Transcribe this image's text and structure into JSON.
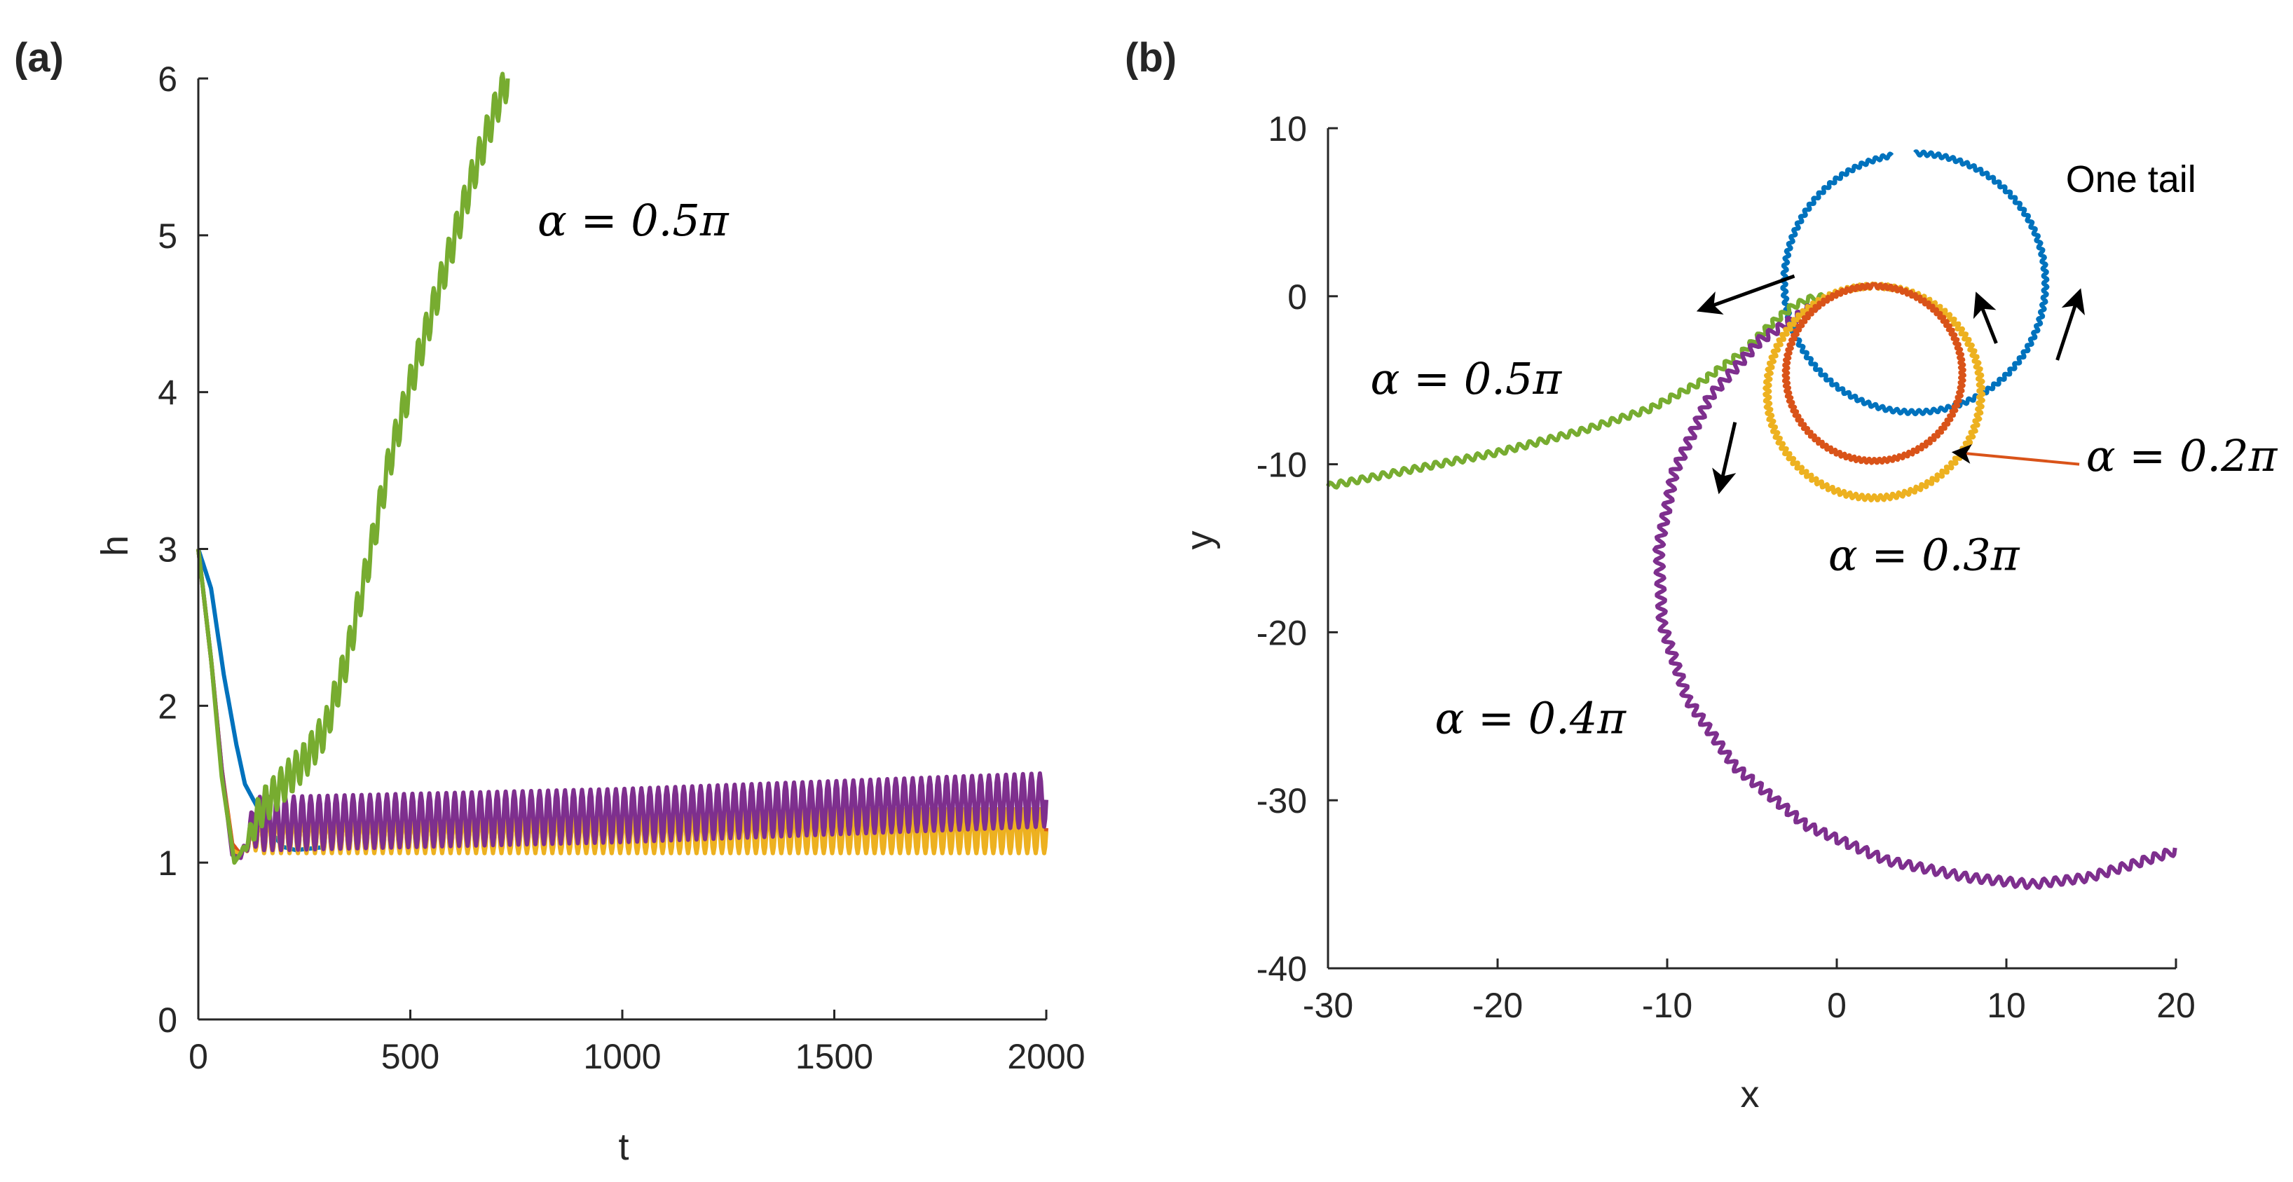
{
  "colors": {
    "alpha_0_2pi": "#D95319",
    "alpha_0_3pi": "#EDB120",
    "alpha_0_4pi": "#7E2F8E",
    "alpha_0_5pi": "#77AC30",
    "one_tail": "#0072BD",
    "axis": "#262626"
  },
  "chart_data": [
    {
      "panel_label": "(a)",
      "panel_letter": "a",
      "type": "line",
      "xlabel": "t",
      "ylabel": "h",
      "xlim": [
        0,
        2000
      ],
      "ylim": [
        0,
        6
      ],
      "xticks": [
        "0",
        "500",
        "1000",
        "1500",
        "2000"
      ],
      "yticks": [
        "0",
        "1",
        "2",
        "3",
        "4",
        "5",
        "6"
      ],
      "grid": false,
      "annotations": [
        {
          "text": "α = 0.5π",
          "at": [
            800,
            5.0
          ]
        }
      ],
      "series": [
        {
          "color": "one_tail",
          "points": [
            [
              0,
              3.0
            ],
            [
              30,
              2.75
            ],
            [
              60,
              2.2
            ],
            [
              90,
              1.75
            ],
            [
              110,
              1.5
            ],
            [
              140,
              1.35
            ],
            [
              170,
              1.2
            ],
            [
              200,
              1.1
            ],
            [
              230,
              1.08
            ],
            [
              300,
              1.1
            ]
          ],
          "osc": {
            "from": 300,
            "to": 2000,
            "amp": 0.1,
            "period": 20
          }
        },
        {
          "color": "alpha_0_2pi",
          "points": [
            [
              0,
              3.0
            ],
            [
              30,
              2.3
            ],
            [
              55,
              1.6
            ],
            [
              80,
              1.12
            ],
            [
              100,
              1.05
            ],
            [
              130,
              1.2
            ],
            [
              200,
              1.2
            ],
            [
              2000,
              1.22
            ]
          ],
          "osc": {
            "from": 100,
            "to": 2000,
            "amp": 0.12,
            "period": 20
          }
        },
        {
          "color": "alpha_0_3pi",
          "points": [
            [
              0,
              3.0
            ],
            [
              30,
              2.3
            ],
            [
              55,
              1.6
            ],
            [
              80,
              1.08
            ],
            [
              100,
              1.05
            ],
            [
              130,
              1.2
            ],
            [
              200,
              1.2
            ],
            [
              2000,
              1.2
            ]
          ],
          "osc": {
            "from": 100,
            "to": 2000,
            "amp": 0.14,
            "period": 20
          }
        },
        {
          "color": "alpha_0_4pi",
          "points": [
            [
              0,
              3.0
            ],
            [
              30,
              2.3
            ],
            [
              55,
              1.6
            ],
            [
              80,
              1.05
            ],
            [
              100,
              1.03
            ],
            [
              130,
              1.25
            ],
            [
              200,
              1.25
            ],
            [
              1000,
              1.3
            ],
            [
              2000,
              1.4
            ]
          ],
          "osc": {
            "from": 100,
            "to": 2000,
            "amp": 0.17,
            "period": 20
          }
        },
        {
          "color": "alpha_0_5pi",
          "points": [
            [
              0,
              3.0
            ],
            [
              30,
              2.3
            ],
            [
              55,
              1.55
            ],
            [
              85,
              1.0
            ],
            [
              110,
              1.1
            ],
            [
              150,
              1.35
            ],
            [
              200,
              1.5
            ],
            [
              250,
              1.65
            ],
            [
              300,
              1.85
            ],
            [
              350,
              2.3
            ],
            [
              400,
              2.9
            ],
            [
              450,
              3.55
            ],
            [
              500,
              4.05
            ],
            [
              550,
              4.5
            ],
            [
              600,
              4.95
            ],
            [
              650,
              5.4
            ],
            [
              700,
              5.8
            ],
            [
              730,
              6.0
            ]
          ],
          "osc": {
            "from": 100,
            "to": 730,
            "amp": 0.12,
            "period": 18
          }
        }
      ]
    },
    {
      "panel_label": "(b)",
      "panel_letter": "b",
      "type": "line",
      "xlabel": "x",
      "ylabel": "y",
      "xlim": [
        -30,
        20
      ],
      "ylim": [
        -40,
        10
      ],
      "xticks": [
        "-30",
        "-20",
        "-10",
        "0",
        "10",
        "20"
      ],
      "yticks": [
        "-40",
        "-30",
        "-20",
        "-10",
        "0",
        "10"
      ],
      "grid": false,
      "annotations": [
        {
          "text": "One tail",
          "at": [
            13.5,
            6.2
          ]
        },
        {
          "text": "α = 0.5π",
          "at": [
            -27.5,
            -5.8
          ]
        },
        {
          "text": "α = 0.2π",
          "at": [
            14.7,
            -10.4
          ]
        },
        {
          "text": "α = 0.3π",
          "at": [
            -0.5,
            -16.3
          ]
        },
        {
          "text": "α = 0.4π",
          "at": [
            -23.7,
            -26.0
          ]
        }
      ],
      "arrows": [
        {
          "from": [
            -2.5,
            1.2
          ],
          "to": [
            -8,
            -0.8
          ]
        },
        {
          "from": [
            9.4,
            -2.8
          ],
          "to": [
            8.3,
            0.0
          ]
        },
        {
          "from": [
            13.0,
            -3.8
          ],
          "to": [
            14.3,
            0.2
          ]
        },
        {
          "from": [
            -6.0,
            -7.5
          ],
          "to": [
            -6.9,
            -11.5
          ]
        }
      ],
      "series": [
        {
          "color": "one_tail",
          "circle": {
            "cx": 4.6,
            "cy": 0.8,
            "r": 7.7,
            "from_deg": 100,
            "to_deg": 450
          },
          "wiggle": 0.12
        },
        {
          "color": "alpha_0_2pi",
          "circle": {
            "cx": 2.2,
            "cy": -4.6,
            "r": 5.2,
            "from_deg": 90,
            "to_deg": 450
          },
          "wiggle": 0.12
        },
        {
          "color": "alpha_0_3pi",
          "circle": {
            "cx": 2.2,
            "cy": -5.7,
            "r": 6.3,
            "from_deg": 90,
            "to_deg": 450
          },
          "wiggle": 0.15
        },
        {
          "color": "alpha_0_4pi",
          "spiral_points": [
            [
              -1.2,
              -0.5
            ],
            [
              -4.5,
              -2.6
            ],
            [
              -7.5,
              -6.0
            ],
            [
              -9.6,
              -10.5
            ],
            [
              -10.5,
              -15.0
            ],
            [
              -10.3,
              -19.5
            ],
            [
              -8.8,
              -24.0
            ],
            [
              -6.0,
              -28.0
            ],
            [
              -1.8,
              -31.5
            ],
            [
              3.0,
              -33.6
            ],
            [
              7.8,
              -34.6
            ],
            [
              11.5,
              -35.0
            ],
            [
              14.8,
              -34.6
            ],
            [
              17.5,
              -33.8
            ],
            [
              20.0,
              -33.0
            ]
          ],
          "wiggle": 0.25
        },
        {
          "color": "alpha_0_5pi",
          "points": [
            [
              -30,
              -11.3
            ],
            [
              -25,
              -10.3
            ],
            [
              -20,
              -9.3
            ],
            [
              -15,
              -8.0
            ],
            [
              -11,
              -6.7
            ],
            [
              -8,
              -5.1
            ],
            [
              -5.5,
              -3.3
            ],
            [
              -3.8,
              -1.6
            ],
            [
              -2.6,
              -0.6
            ],
            [
              -1.6,
              -0.15
            ],
            [
              -0.5,
              0.0
            ]
          ],
          "wiggle": 0.18
        }
      ]
    }
  ]
}
